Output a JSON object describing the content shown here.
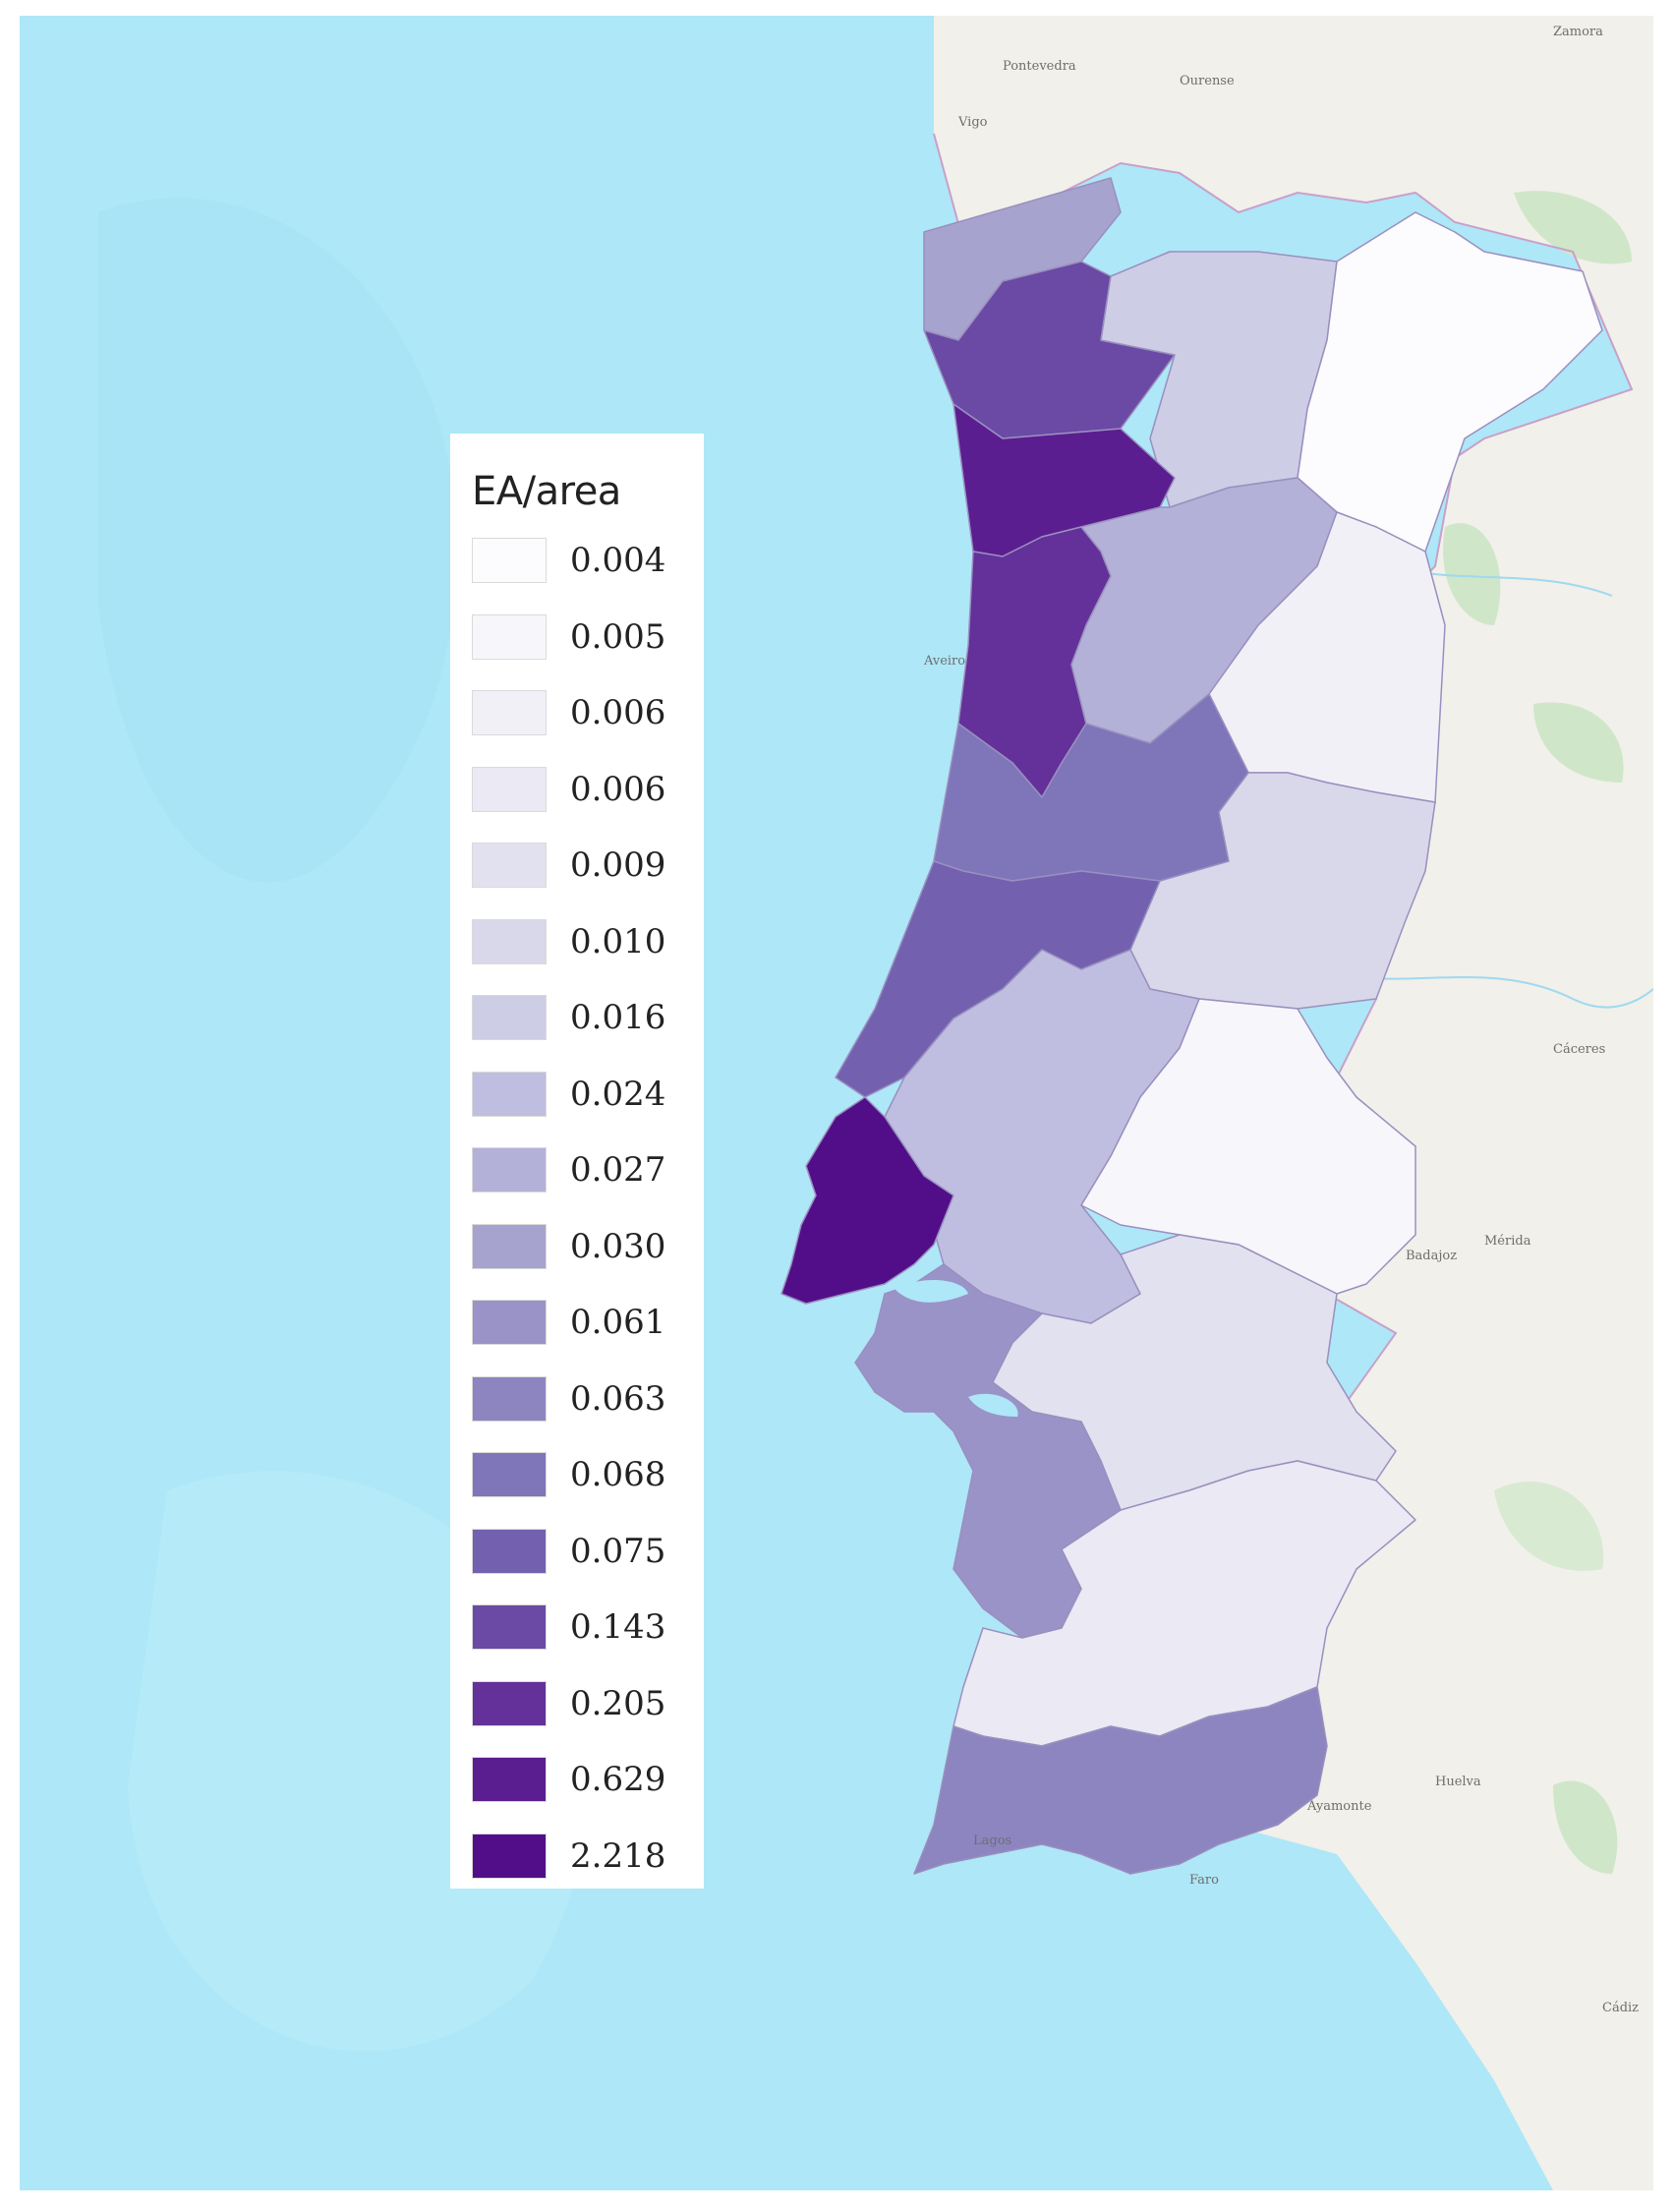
{
  "legend": {
    "title": "EA/area",
    "items": [
      {
        "value": "0.004",
        "color": "#fcfbfd"
      },
      {
        "value": "0.005",
        "color": "#f7f6fb"
      },
      {
        "value": "0.006",
        "color": "#f2f0f7"
      },
      {
        "value": "0.006",
        "color": "#ebe9f4"
      },
      {
        "value": "0.009",
        "color": "#e2e1ef"
      },
      {
        "value": "0.010",
        "color": "#d9d8ea"
      },
      {
        "value": "0.016",
        "color": "#cdcde6"
      },
      {
        "value": "0.024",
        "color": "#bfbee0"
      },
      {
        "value": "0.027",
        "color": "#b3b1d8"
      },
      {
        "value": "0.030",
        "color": "#a7a3cf"
      },
      {
        "value": "0.061",
        "color": "#9a93c7"
      },
      {
        "value": "0.063",
        "color": "#8c85c0"
      },
      {
        "value": "0.068",
        "color": "#7f75b9"
      },
      {
        "value": "0.075",
        "color": "#7361b0"
      },
      {
        "value": "0.143",
        "color": "#6a4aa4"
      },
      {
        "value": "0.205",
        "color": "#633199"
      },
      {
        "value": "0.629",
        "color": "#5b1e91"
      },
      {
        "value": "2.218",
        "color": "#520e88"
      }
    ]
  },
  "map": {
    "colors": {
      "sea": "#aee7f7",
      "land": "#f1f0ea",
      "border": "#c9a0c9",
      "region_edge": "#9a8fbf"
    },
    "place_labels": [
      "Pontevedra",
      "Ourense",
      "Vigo",
      "Zamora",
      "Cáceres",
      "Mérida",
      "Badajoz",
      "Huelva",
      "Cádiz",
      "Lagos",
      "Faro",
      "Ayamonte",
      "Aveiro"
    ]
  }
}
